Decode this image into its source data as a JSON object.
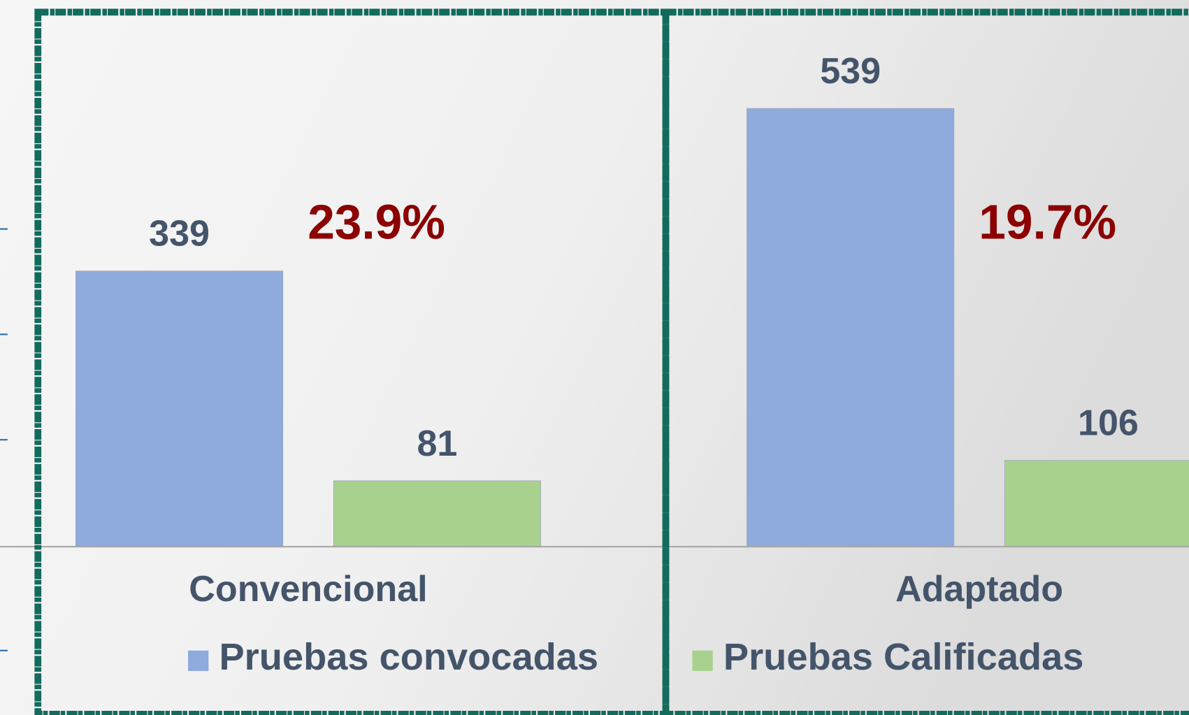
{
  "chart_data": {
    "type": "bar",
    "categories": [
      "Convencional",
      "Adaptado"
    ],
    "series": [
      {
        "name": "Pruebas convocadas",
        "color": "#8faadc",
        "values": [
          339,
          539
        ]
      },
      {
        "name": "Pruebas Calificadas",
        "color": "#a9d18e",
        "values": [
          81,
          106
        ]
      }
    ],
    "annotations": [
      "23.9%",
      "19.7%"
    ],
    "annotation_color": "#8b0000",
    "ylim": [
      0,
      650
    ],
    "legend": "bottom"
  }
}
